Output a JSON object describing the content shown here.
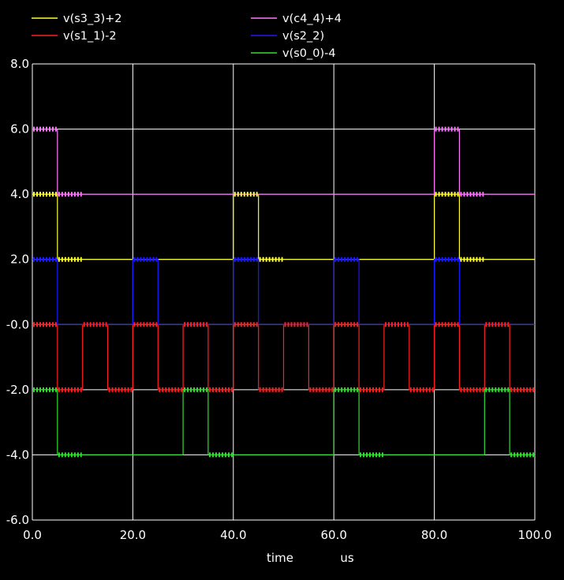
{
  "chart_data": {
    "type": "line",
    "title": "",
    "xlabel": "time",
    "xunit": "us",
    "ylabel": "",
    "xlim": [
      0,
      100
    ],
    "ylim": [
      -6,
      8
    ],
    "grid": true,
    "legend_placement": "top",
    "x_ticks": [
      "0.0",
      "20.0",
      "40.0",
      "60.0",
      "80.0",
      "100.0"
    ],
    "y_ticks": [
      "8.0",
      "6.0",
      "4.0",
      "2.0",
      "-0.0",
      "-2.0",
      "-4.0",
      "-6.0"
    ],
    "colors": {
      "background": "#000000",
      "grid": "#ffffff",
      "axis_text": "#ffffff"
    },
    "series": [
      {
        "name": "v(s3_3)+2",
        "color": "#ffff33",
        "x": [
          0,
          5,
          5,
          40,
          40,
          45,
          45,
          80,
          80,
          85,
          85,
          100
        ],
        "y": [
          4,
          4,
          2,
          2,
          4,
          4,
          2,
          2,
          4,
          4,
          2,
          2
        ]
      },
      {
        "name": "v(s1_1)-2",
        "color": "#ff2020",
        "x": [
          0,
          5,
          5,
          10,
          10,
          15,
          15,
          20,
          20,
          25,
          25,
          30,
          30,
          35,
          35,
          40,
          40,
          45,
          45,
          50,
          50,
          55,
          55,
          60,
          60,
          65,
          65,
          70,
          70,
          75,
          75,
          80,
          80,
          85,
          85,
          90,
          90,
          95,
          95,
          100
        ],
        "y": [
          0,
          0,
          -2,
          -2,
          0,
          0,
          -2,
          -2,
          0,
          0,
          -2,
          -2,
          0,
          0,
          -2,
          -2,
          0,
          0,
          -2,
          -2,
          0,
          0,
          -2,
          -2,
          0,
          0,
          -2,
          -2,
          0,
          0,
          -2,
          -2,
          0,
          0,
          -2,
          -2,
          0,
          0,
          -2,
          -2
        ]
      },
      {
        "name": "v(c4_4)+4",
        "color": "#ff77ff",
        "x": [
          0,
          5,
          5,
          80,
          80,
          85,
          85,
          100
        ],
        "y": [
          6,
          6,
          4,
          4,
          6,
          6,
          4,
          4
        ]
      },
      {
        "name": "v(s2_2)",
        "color": "#1a1aff",
        "x": [
          0,
          5,
          5,
          20,
          20,
          25,
          25,
          40,
          40,
          45,
          45,
          60,
          60,
          65,
          65,
          80,
          80,
          85,
          85,
          100
        ],
        "y": [
          2,
          2,
          0,
          0,
          2,
          2,
          0,
          0,
          2,
          2,
          0,
          0,
          2,
          2,
          0,
          0,
          2,
          2,
          0,
          0
        ]
      },
      {
        "name": "v(s0_0)-4",
        "color": "#33dd33",
        "x": [
          0,
          5,
          5,
          30,
          30,
          35,
          35,
          60,
          60,
          65,
          65,
          90,
          90,
          95,
          95,
          100
        ],
        "y": [
          -2,
          -2,
          -4,
          -4,
          -2,
          -2,
          -4,
          -4,
          -2,
          -2,
          -4,
          -4,
          -2,
          -2,
          -4,
          -4
        ]
      }
    ],
    "ripple_segments": [
      {
        "series": 0,
        "x": [
          0,
          5
        ],
        "y": 4
      },
      {
        "series": 0,
        "x": [
          5,
          10
        ],
        "y": 2
      },
      {
        "series": 0,
        "x": [
          40,
          45
        ],
        "y": 4
      },
      {
        "series": 0,
        "x": [
          45,
          50
        ],
        "y": 2
      },
      {
        "series": 0,
        "x": [
          80,
          85
        ],
        "y": 4
      },
      {
        "series": 0,
        "x": [
          85,
          90
        ],
        "y": 2
      },
      {
        "series": 2,
        "x": [
          0,
          5
        ],
        "y": 6
      },
      {
        "series": 2,
        "x": [
          5,
          10
        ],
        "y": 4
      },
      {
        "series": 2,
        "x": [
          80,
          85
        ],
        "y": 6
      },
      {
        "series": 2,
        "x": [
          85,
          90
        ],
        "y": 4
      },
      {
        "series": 3,
        "x": [
          0,
          5
        ],
        "y": 2
      },
      {
        "series": 3,
        "x": [
          20,
          25
        ],
        "y": 2
      },
      {
        "series": 3,
        "x": [
          40,
          45
        ],
        "y": 2
      },
      {
        "series": 3,
        "x": [
          60,
          65
        ],
        "y": 2
      },
      {
        "series": 3,
        "x": [
          80,
          85
        ],
        "y": 2
      },
      {
        "series": 1,
        "x": [
          0,
          5
        ],
        "y": 0
      },
      {
        "series": 1,
        "x": [
          10,
          15
        ],
        "y": 0
      },
      {
        "series": 1,
        "x": [
          20,
          25
        ],
        "y": 0
      },
      {
        "series": 1,
        "x": [
          30,
          35
        ],
        "y": 0
      },
      {
        "series": 1,
        "x": [
          40,
          45
        ],
        "y": 0
      },
      {
        "series": 1,
        "x": [
          50,
          55
        ],
        "y": 0
      },
      {
        "series": 1,
        "x": [
          60,
          65
        ],
        "y": 0
      },
      {
        "series": 1,
        "x": [
          70,
          75
        ],
        "y": 0
      },
      {
        "series": 1,
        "x": [
          80,
          85
        ],
        "y": 0
      },
      {
        "series": 1,
        "x": [
          90,
          95
        ],
        "y": 0
      },
      {
        "series": 1,
        "x": [
          5,
          10
        ],
        "y": -2
      },
      {
        "series": 1,
        "x": [
          15,
          20
        ],
        "y": -2
      },
      {
        "series": 1,
        "x": [
          25,
          30
        ],
        "y": -2
      },
      {
        "series": 1,
        "x": [
          35,
          40
        ],
        "y": -2
      },
      {
        "series": 1,
        "x": [
          45,
          50
        ],
        "y": -2
      },
      {
        "series": 1,
        "x": [
          55,
          60
        ],
        "y": -2
      },
      {
        "series": 1,
        "x": [
          65,
          70
        ],
        "y": -2
      },
      {
        "series": 1,
        "x": [
          75,
          80
        ],
        "y": -2
      },
      {
        "series": 1,
        "x": [
          85,
          90
        ],
        "y": -2
      },
      {
        "series": 1,
        "x": [
          95,
          100
        ],
        "y": -2
      },
      {
        "series": 4,
        "x": [
          0,
          5
        ],
        "y": -2
      },
      {
        "series": 4,
        "x": [
          30,
          35
        ],
        "y": -2
      },
      {
        "series": 4,
        "x": [
          60,
          65
        ],
        "y": -2
      },
      {
        "series": 4,
        "x": [
          90,
          95
        ],
        "y": -2
      },
      {
        "series": 4,
        "x": [
          5,
          10
        ],
        "y": -4
      },
      {
        "series": 4,
        "x": [
          35,
          40
        ],
        "y": -4
      },
      {
        "series": 4,
        "x": [
          65,
          70
        ],
        "y": -4
      },
      {
        "series": 4,
        "x": [
          95,
          100
        ],
        "y": -4
      }
    ]
  }
}
